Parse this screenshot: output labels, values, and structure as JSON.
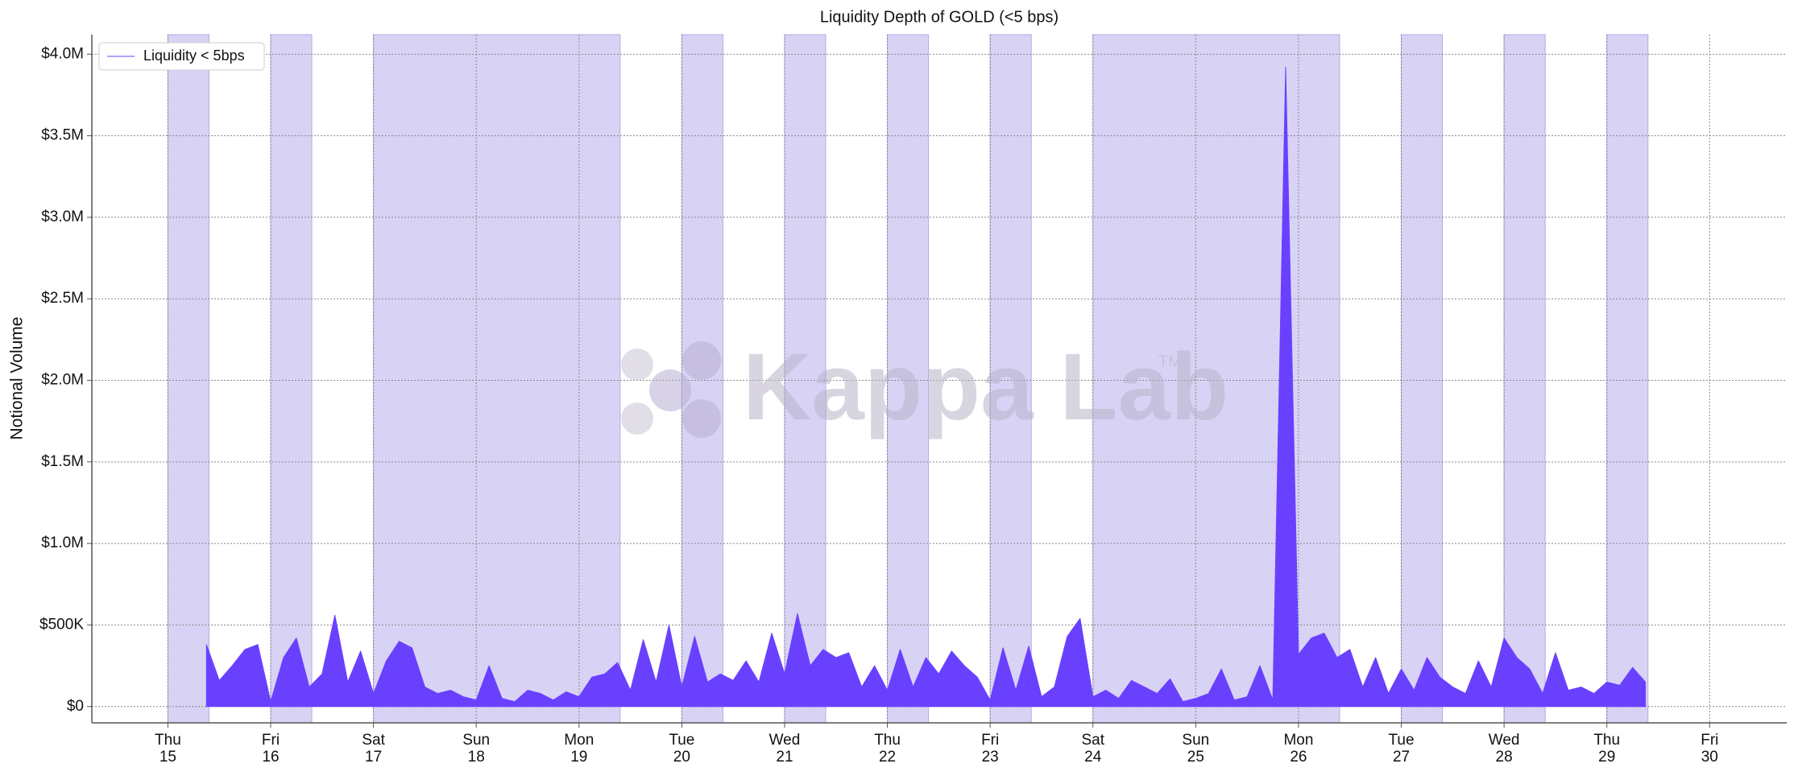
{
  "chart_data": {
    "type": "area",
    "title": "Liquidity Depth of GOLD (<5 bps)",
    "y_label": "Notional Volume",
    "watermark": "Kappa Lab",
    "watermark_mark": "TM",
    "legend": "upper left",
    "grid": true,
    "band_color": "#d8d3f5",
    "shaded_spans": [
      [
        15,
        15.4
      ],
      [
        16,
        16.4
      ],
      [
        17,
        19.4
      ],
      [
        20,
        20.4
      ],
      [
        21,
        21.4
      ],
      [
        22,
        22.4
      ],
      [
        23,
        23.4
      ],
      [
        24,
        26.4
      ],
      [
        27,
        27.4
      ],
      [
        28,
        28.4
      ],
      [
        29,
        29.4
      ]
    ],
    "xlim": [
      14.26,
      30.75
    ],
    "xticks": [
      {
        "value": 15,
        "label": "Thu\n15"
      },
      {
        "value": 16,
        "label": "Fri\n16"
      },
      {
        "value": 17,
        "label": "Sat\n17"
      },
      {
        "value": 18,
        "label": "Sun\n18"
      },
      {
        "value": 19,
        "label": "Mon\n19"
      },
      {
        "value": 20,
        "label": "Tue\n20"
      },
      {
        "value": 21,
        "label": "Wed\n21"
      },
      {
        "value": 22,
        "label": "Thu\n22"
      },
      {
        "value": 23,
        "label": "Fri\n23"
      },
      {
        "value": 24,
        "label": "Sat\n24"
      },
      {
        "value": 25,
        "label": "Sun\n25"
      },
      {
        "value": 26,
        "label": "Mon\n26"
      },
      {
        "value": 27,
        "label": "Tue\n27"
      },
      {
        "value": 28,
        "label": "Wed\n28"
      },
      {
        "value": 29,
        "label": "Thu\n29"
      },
      {
        "value": 30,
        "label": "Fri\n30"
      }
    ],
    "ylim": [
      -100000,
      4120000
    ],
    "yticks": [
      {
        "value": 0,
        "label": "$0"
      },
      {
        "value": 500000,
        "label": "$500K"
      },
      {
        "value": 1000000,
        "label": "$1.0M"
      },
      {
        "value": 1500000,
        "label": "$1.5M"
      },
      {
        "value": 2000000,
        "label": "$2.0M"
      },
      {
        "value": 2500000,
        "label": "$2.5M"
      },
      {
        "value": 3000000,
        "label": "$3.0M"
      },
      {
        "value": 3500000,
        "label": "$3.5M"
      },
      {
        "value": 4000000,
        "label": "$4.0M"
      }
    ],
    "x": [
      15.375,
      15.5,
      15.625,
      15.75,
      15.875,
      16.0,
      16.125,
      16.25,
      16.375,
      16.5,
      16.625,
      16.75,
      16.875,
      17.0,
      17.125,
      17.25,
      17.375,
      17.5,
      17.625,
      17.75,
      17.875,
      18.0,
      18.125,
      18.25,
      18.375,
      18.5,
      18.625,
      18.75,
      18.875,
      19.0,
      19.125,
      19.25,
      19.375,
      19.5,
      19.625,
      19.75,
      19.875,
      20.0,
      20.125,
      20.25,
      20.375,
      20.5,
      20.625,
      20.75,
      20.875,
      21.0,
      21.125,
      21.25,
      21.375,
      21.5,
      21.625,
      21.75,
      21.875,
      22.0,
      22.125,
      22.25,
      22.375,
      22.5,
      22.625,
      22.75,
      22.875,
      23.0,
      23.125,
      23.25,
      23.375,
      23.5,
      23.625,
      23.75,
      23.875,
      24.0,
      24.125,
      24.25,
      24.375,
      24.5,
      24.625,
      24.75,
      24.875,
      25.0,
      25.125,
      25.25,
      25.375,
      25.5,
      25.625,
      25.75,
      25.875,
      26.0,
      26.125,
      26.25,
      26.375,
      26.5,
      26.625,
      26.75,
      26.875,
      27.0,
      27.125,
      27.25,
      27.375,
      27.5,
      27.625,
      27.75,
      27.875,
      28.0,
      28.125,
      28.25,
      28.375,
      28.5,
      28.625,
      28.75,
      28.875,
      29.0,
      29.125,
      29.25,
      29.375
    ],
    "series": [
      {
        "name": "Liquidity < 5bps",
        "color": "#6a40ff",
        "values": [
          380000,
          160000,
          250000,
          350000,
          380000,
          30000,
          300000,
          420000,
          120000,
          200000,
          560000,
          150000,
          340000,
          80000,
          280000,
          400000,
          360000,
          120000,
          80000,
          100000,
          60000,
          40000,
          250000,
          50000,
          30000,
          100000,
          80000,
          40000,
          90000,
          60000,
          180000,
          200000,
          270000,
          100000,
          410000,
          150000,
          500000,
          120000,
          430000,
          150000,
          200000,
          160000,
          280000,
          150000,
          450000,
          200000,
          570000,
          250000,
          350000,
          300000,
          330000,
          120000,
          250000,
          100000,
          350000,
          120000,
          300000,
          200000,
          340000,
          250000,
          180000,
          40000,
          360000,
          100000,
          370000,
          60000,
          120000,
          430000,
          540000,
          60000,
          100000,
          50000,
          160000,
          120000,
          80000,
          170000,
          30000,
          50000,
          80000,
          230000,
          40000,
          60000,
          250000,
          40000,
          3920000,
          320000,
          420000,
          450000,
          300000,
          350000,
          120000,
          300000,
          80000,
          230000,
          100000,
          300000,
          180000,
          120000,
          80000,
          280000,
          120000,
          420000,
          300000,
          230000,
          80000,
          330000,
          100000,
          120000,
          80000,
          150000,
          130000,
          240000,
          150000
        ]
      }
    ]
  }
}
